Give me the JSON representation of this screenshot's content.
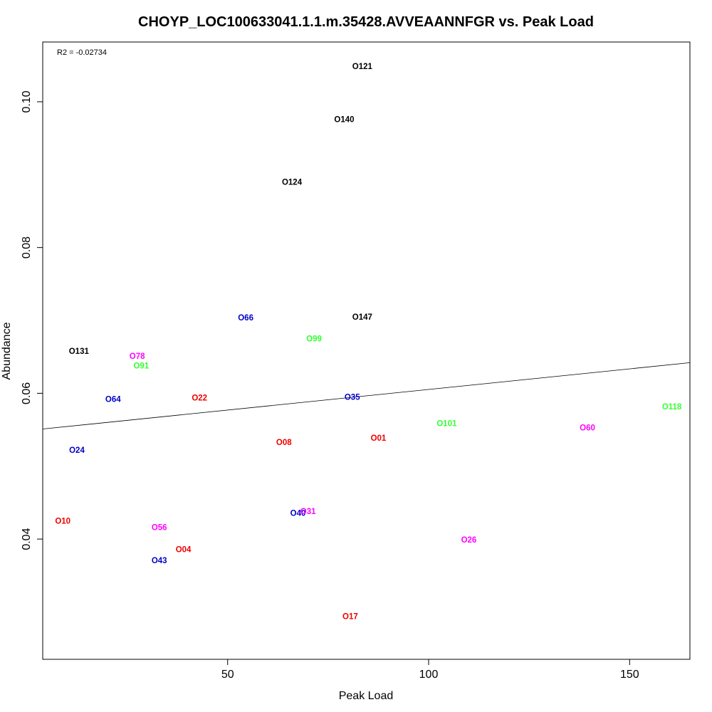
{
  "chart_data": {
    "type": "scatter",
    "title": "CHOYP_LOC100633041.1.1.m.35428.AVVEAANNFGR vs. Peak Load",
    "xlabel": "Peak Load",
    "ylabel": "Abundance",
    "annotation": "R2 = -0.02734",
    "xlim": [
      4,
      165
    ],
    "ylim": [
      0.0235,
      0.1082
    ],
    "x_ticks": [
      50,
      100,
      150
    ],
    "x_tick_labels": [
      "50",
      "100",
      "150"
    ],
    "y_ticks": [
      0.04,
      0.06,
      0.08,
      0.1
    ],
    "y_tick_labels": [
      "0.04",
      "0.06",
      "0.08",
      "0.10"
    ],
    "grid": false,
    "trend_line": {
      "x": [
        4,
        165
      ],
      "y": [
        0.0551,
        0.0642
      ]
    },
    "points": [
      {
        "label": "O121",
        "x": 83.5,
        "y": 0.1048,
        "color": "#000000"
      },
      {
        "label": "O140",
        "x": 79.0,
        "y": 0.0975,
        "color": "#000000"
      },
      {
        "label": "O124",
        "x": 66.0,
        "y": 0.0889,
        "color": "#000000"
      },
      {
        "label": "O147",
        "x": 83.5,
        "y": 0.0704,
        "color": "#000000"
      },
      {
        "label": "O131",
        "x": 13.0,
        "y": 0.0657,
        "color": "#000000"
      },
      {
        "label": "O66",
        "x": 54.5,
        "y": 0.0703,
        "color": "#0000cc"
      },
      {
        "label": "O99",
        "x": 71.5,
        "y": 0.0674,
        "color": "#33ff33"
      },
      {
        "label": "O78",
        "x": 27.5,
        "y": 0.065,
        "color": "#ff00ff"
      },
      {
        "label": "O91",
        "x": 28.5,
        "y": 0.0637,
        "color": "#33ff33"
      },
      {
        "label": "O64",
        "x": 21.5,
        "y": 0.0591,
        "color": "#0000cc"
      },
      {
        "label": "O22",
        "x": 43.0,
        "y": 0.0593,
        "color": "#ee0000"
      },
      {
        "label": "O35",
        "x": 81.0,
        "y": 0.0594,
        "color": "#0000cc"
      },
      {
        "label": "O118",
        "x": 160.5,
        "y": 0.0581,
        "color": "#33ff33"
      },
      {
        "label": "O101",
        "x": 104.5,
        "y": 0.0558,
        "color": "#33ff33"
      },
      {
        "label": "O60",
        "x": 139.5,
        "y": 0.0552,
        "color": "#ff00ff"
      },
      {
        "label": "O01",
        "x": 87.5,
        "y": 0.0538,
        "color": "#ee0000"
      },
      {
        "label": "O08",
        "x": 64.0,
        "y": 0.0532,
        "color": "#ee0000"
      },
      {
        "label": "O24",
        "x": 12.5,
        "y": 0.0521,
        "color": "#0000cc"
      },
      {
        "label": "O40",
        "x": 67.5,
        "y": 0.0435,
        "color": "#0000cc"
      },
      {
        "label": "O31",
        "x": 70.0,
        "y": 0.0437,
        "color": "#ff00ff"
      },
      {
        "label": "O10",
        "x": 9.0,
        "y": 0.0424,
        "color": "#ee0000"
      },
      {
        "label": "O56",
        "x": 33.0,
        "y": 0.0415,
        "color": "#ff00ff"
      },
      {
        "label": "O26",
        "x": 110.0,
        "y": 0.0398,
        "color": "#ff00ff"
      },
      {
        "label": "O04",
        "x": 39.0,
        "y": 0.0385,
        "color": "#ee0000"
      },
      {
        "label": "O43",
        "x": 33.0,
        "y": 0.037,
        "color": "#0000cc"
      },
      {
        "label": "O17",
        "x": 80.5,
        "y": 0.0293,
        "color": "#ee0000"
      }
    ]
  }
}
